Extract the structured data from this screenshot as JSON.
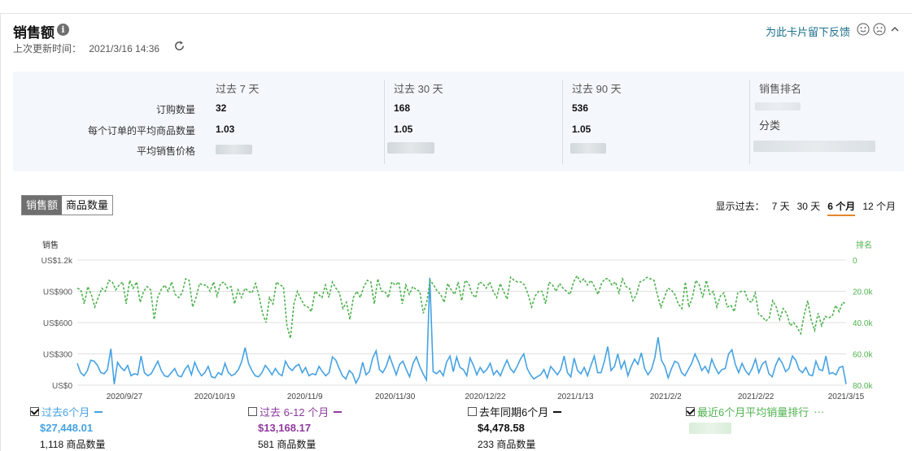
{
  "header": {
    "title": "销售额",
    "info_icon": "i",
    "last_updated_label": "上次更新时间：",
    "last_updated_value": "2021/3/16 14:36",
    "feedback_link": "为此卡片留下反馈"
  },
  "summary": {
    "columns": [
      "过去 7 天",
      "过去 30 天",
      "过去 90 天"
    ],
    "row_labels": [
      "订购数量",
      "每个订单的平均商品数量",
      "平均销售价格"
    ],
    "values": {
      "orders": [
        "32",
        "168",
        "536"
      ],
      "avg_items": [
        "1.03",
        "1.05",
        "1.05"
      ]
    },
    "rank_head": "销售排名",
    "category_label": "分类"
  },
  "tabs": [
    "销售额",
    "商品数量"
  ],
  "range": {
    "label": "显示过去：",
    "options": [
      "7 天",
      "30 天",
      "6 个月",
      "12 个月"
    ],
    "selected": "6 个月"
  },
  "colors": {
    "sales": "#45a2e3",
    "rank": "#4fb24f",
    "prev": "#8e3a9e",
    "grid": "#e0e0e0"
  },
  "chart_data": {
    "type": "line",
    "left_axis_title": "销售",
    "right_axis_title": "排名",
    "left_ticks": [
      "US$1.2k",
      "US$900",
      "US$600",
      "US$300",
      "US$0"
    ],
    "right_ticks": [
      "0",
      "20.0k",
      "40.0k",
      "60.0k",
      "80.0k"
    ],
    "ylim": [
      0,
      1200
    ],
    "y2lim": [
      80000,
      0
    ],
    "x_ticks": [
      "2020/9/27",
      "2020/10/19",
      "2020/11/9",
      "2020/11/30",
      "2020/12/22",
      "2021/1/13",
      "2021/2/2",
      "2021/2/22",
      "2021/3/15"
    ],
    "series": [
      {
        "name": "过去6个月",
        "axis": "left",
        "values": [
          210,
          120,
          90,
          140,
          240,
          230,
          190,
          120,
          110,
          150,
          350,
          10,
          220,
          170,
          140,
          190,
          90,
          110,
          100,
          280,
          120,
          90,
          110,
          170,
          230,
          140,
          90,
          80,
          120,
          160,
          90,
          80,
          150,
          190,
          100,
          220,
          140,
          90,
          120,
          180,
          80,
          70,
          120,
          100,
          210,
          120,
          90,
          110,
          150,
          230,
          360,
          210,
          140,
          90,
          80,
          120,
          190,
          150,
          100,
          160,
          110,
          90,
          230,
          170,
          140,
          180,
          200,
          120,
          170,
          90,
          110,
          100,
          180,
          130,
          90,
          120,
          270,
          240,
          160,
          90,
          60,
          140,
          110,
          20,
          80,
          220,
          100,
          130,
          260,
          330,
          150,
          120,
          180,
          280,
          190,
          100,
          200,
          230,
          150,
          80,
          210,
          270,
          180,
          110,
          50,
          1030,
          130,
          110,
          140,
          90,
          220,
          280,
          130,
          270,
          170,
          150,
          90,
          260,
          190,
          100,
          170,
          120,
          150,
          210,
          100,
          140,
          90,
          170,
          240,
          160,
          120,
          180,
          250,
          300,
          160,
          100,
          60,
          80,
          100,
          150,
          70,
          180,
          140,
          100,
          150,
          280,
          120,
          80,
          260,
          140,
          110,
          170,
          90,
          190,
          280,
          120,
          120,
          230,
          370,
          140,
          180,
          300,
          160,
          230,
          90,
          180,
          250,
          200,
          310,
          160,
          100,
          150,
          260,
          460,
          240,
          180,
          70,
          160,
          230,
          210,
          120,
          90,
          150,
          210,
          300,
          230,
          140,
          180,
          120,
          250,
          170,
          110,
          150,
          160,
          300,
          340,
          200,
          120,
          210,
          140,
          100,
          160,
          250,
          120,
          200,
          230,
          110,
          80,
          190,
          260,
          210,
          130,
          160,
          280,
          240,
          150,
          120,
          170,
          100,
          90,
          230,
          150,
          140,
          280,
          110,
          120,
          100,
          170,
          180,
          10
        ]
      },
      {
        "name": "最近6个月平均销量排行",
        "axis": "right",
        "values": [
          18000,
          19000,
          28000,
          17000,
          22000,
          30000,
          24000,
          18000,
          20000,
          13000,
          14000,
          19000,
          16000,
          14000,
          28000,
          13000,
          18000,
          14000,
          27000,
          20000,
          17000,
          19000,
          38000,
          24000,
          19000,
          16000,
          20000,
          14000,
          22000,
          24000,
          21000,
          12000,
          13000,
          30000,
          24000,
          15000,
          16000,
          16000,
          20000,
          14000,
          23000,
          15000,
          14000,
          18000,
          17000,
          28000,
          19000,
          24000,
          18000,
          20000,
          21000,
          15000,
          23000,
          34000,
          40000,
          24000,
          28000,
          14000,
          16000,
          17000,
          42000,
          50000,
          28000,
          20000,
          25000,
          29000,
          30000,
          33000,
          20000,
          22000,
          24000,
          16000,
          24000,
          14000,
          18000,
          21000,
          31000,
          27000,
          38000,
          24000,
          20000,
          24000,
          17000,
          13000,
          14000,
          28000,
          12000,
          20000,
          20000,
          24000,
          14000,
          16000,
          14000,
          28000,
          16000,
          22000,
          17000,
          19000,
          20000,
          34000,
          27000,
          13000,
          16000,
          20000,
          22000,
          27000,
          15000,
          19000,
          22000,
          14000,
          26000,
          13000,
          15000,
          22000,
          24000,
          14000,
          15000,
          18000,
          14000,
          20000,
          24000,
          15000,
          20000,
          25000,
          11000,
          13000,
          14000,
          14000,
          16000,
          22000,
          30000,
          23000,
          20000,
          20000,
          28000,
          14000,
          16000,
          20000,
          15000,
          18000,
          20000,
          22000,
          14000,
          10000,
          14000,
          12000,
          16000,
          13000,
          17000,
          22000,
          15000,
          12000,
          12000,
          16000,
          14000,
          21000,
          12000,
          17000,
          18000,
          26000,
          22000,
          14000,
          13000,
          11000,
          12000,
          13000,
          22000,
          30000,
          24000,
          18000,
          19000,
          22000,
          28000,
          31000,
          14000,
          30000,
          24000,
          13000,
          16000,
          24000,
          13000,
          22000,
          20000,
          30000,
          23000,
          21000,
          30000,
          29000,
          33000,
          21000,
          20000,
          20000,
          26000,
          27000,
          21000,
          35000,
          36000,
          39000,
          37000,
          26000,
          30000,
          38000,
          31000,
          34000,
          42000,
          40000,
          43000,
          47000,
          35000,
          26000,
          38000,
          45000,
          34000,
          42000,
          36000,
          37000,
          36000,
          29000,
          33000,
          27000,
          28000
        ]
      }
    ]
  },
  "legend": [
    {
      "label": "过去6个月",
      "amount": "$27,448.01",
      "count": "1,118 商品数量",
      "checked": true,
      "color": "#45a2e3"
    },
    {
      "label": "过去 6-12 个月",
      "amount": "$13,168.17",
      "count": "581 商品数量",
      "checked": false,
      "color": "#8e3a9e"
    },
    {
      "label": "去年同期6个月",
      "amount": "$4,478.58",
      "count": "233 商品数量",
      "checked": false,
      "color": "#111111"
    },
    {
      "label": "最近6个月平均销量排行",
      "checked": true,
      "color": "#4fb24f"
    }
  ]
}
